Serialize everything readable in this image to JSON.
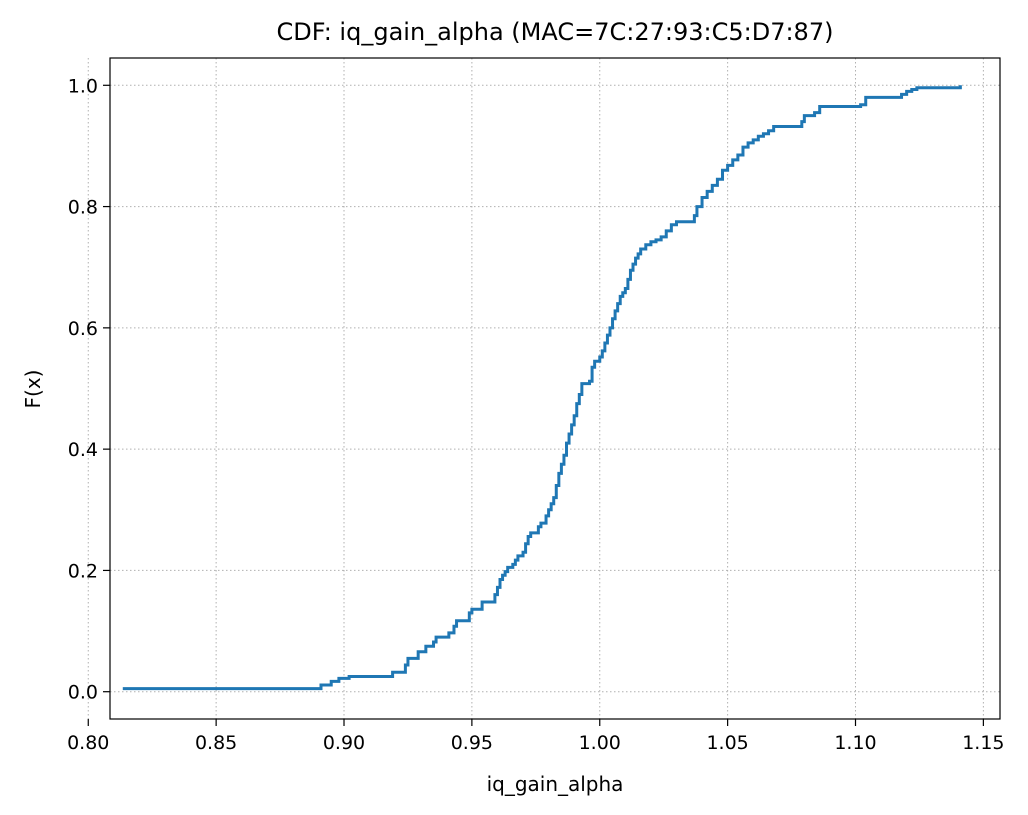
{
  "chart_data": {
    "type": "line",
    "step": true,
    "title": "CDF: iq_gain_alpha (MAC=7C:27:93:C5:D7:87)",
    "xlabel": "iq_gain_alpha",
    "ylabel": "F(x)",
    "xlim": [
      0.8085,
      1.1565
    ],
    "ylim": [
      -0.045,
      1.045
    ],
    "xticks": [
      0.8,
      0.85,
      0.9,
      0.95,
      1.0,
      1.05,
      1.1,
      1.15
    ],
    "xtick_labels": [
      "0.80",
      "0.85",
      "0.90",
      "0.95",
      "1.00",
      "1.05",
      "1.10",
      "1.15"
    ],
    "yticks": [
      0.0,
      0.2,
      0.4,
      0.6,
      0.8,
      1.0
    ],
    "ytick_labels": [
      "0.0",
      "0.2",
      "0.4",
      "0.6",
      "0.8",
      "1.0"
    ],
    "grid": true,
    "series": [
      {
        "color": "#1f77b4",
        "points": [
          [
            0.8135,
            0.005
          ],
          [
            0.89,
            0.005
          ],
          [
            0.891,
            0.011
          ],
          [
            0.894,
            0.011
          ],
          [
            0.895,
            0.017
          ],
          [
            0.897,
            0.017
          ],
          [
            0.898,
            0.022
          ],
          [
            0.901,
            0.022
          ],
          [
            0.902,
            0.025
          ],
          [
            0.918,
            0.025
          ],
          [
            0.919,
            0.032
          ],
          [
            0.923,
            0.032
          ],
          [
            0.924,
            0.044
          ],
          [
            0.925,
            0.055
          ],
          [
            0.928,
            0.055
          ],
          [
            0.929,
            0.066
          ],
          [
            0.931,
            0.066
          ],
          [
            0.932,
            0.075
          ],
          [
            0.934,
            0.075
          ],
          [
            0.935,
            0.082
          ],
          [
            0.936,
            0.09
          ],
          [
            0.94,
            0.09
          ],
          [
            0.941,
            0.097
          ],
          [
            0.942,
            0.097
          ],
          [
            0.943,
            0.108
          ],
          [
            0.944,
            0.117
          ],
          [
            0.948,
            0.117
          ],
          [
            0.949,
            0.13
          ],
          [
            0.95,
            0.136
          ],
          [
            0.953,
            0.136
          ],
          [
            0.954,
            0.148
          ],
          [
            0.958,
            0.148
          ],
          [
            0.959,
            0.16
          ],
          [
            0.96,
            0.172
          ],
          [
            0.961,
            0.185
          ],
          [
            0.962,
            0.192
          ],
          [
            0.963,
            0.198
          ],
          [
            0.964,
            0.205
          ],
          [
            0.966,
            0.21
          ],
          [
            0.967,
            0.217
          ],
          [
            0.968,
            0.224
          ],
          [
            0.97,
            0.23
          ],
          [
            0.971,
            0.244
          ],
          [
            0.972,
            0.256
          ],
          [
            0.973,
            0.262
          ],
          [
            0.975,
            0.262
          ],
          [
            0.976,
            0.272
          ],
          [
            0.977,
            0.278
          ],
          [
            0.979,
            0.29
          ],
          [
            0.98,
            0.3
          ],
          [
            0.981,
            0.31
          ],
          [
            0.982,
            0.32
          ],
          [
            0.983,
            0.34
          ],
          [
            0.984,
            0.36
          ],
          [
            0.985,
            0.375
          ],
          [
            0.986,
            0.39
          ],
          [
            0.987,
            0.41
          ],
          [
            0.988,
            0.425
          ],
          [
            0.989,
            0.44
          ],
          [
            0.99,
            0.455
          ],
          [
            0.991,
            0.475
          ],
          [
            0.992,
            0.49
          ],
          [
            0.993,
            0.508
          ],
          [
            0.996,
            0.512
          ],
          [
            0.997,
            0.535
          ],
          [
            0.998,
            0.545
          ],
          [
            1.0,
            0.552
          ],
          [
            1.001,
            0.562
          ],
          [
            1.002,
            0.575
          ],
          [
            1.003,
            0.588
          ],
          [
            1.004,
            0.6
          ],
          [
            1.005,
            0.615
          ],
          [
            1.006,
            0.628
          ],
          [
            1.007,
            0.64
          ],
          [
            1.008,
            0.652
          ],
          [
            1.009,
            0.658
          ],
          [
            1.01,
            0.665
          ],
          [
            1.011,
            0.68
          ],
          [
            1.012,
            0.695
          ],
          [
            1.013,
            0.705
          ],
          [
            1.014,
            0.715
          ],
          [
            1.015,
            0.722
          ],
          [
            1.016,
            0.73
          ],
          [
            1.018,
            0.737
          ],
          [
            1.02,
            0.742
          ],
          [
            1.022,
            0.745
          ],
          [
            1.024,
            0.75
          ],
          [
            1.026,
            0.76
          ],
          [
            1.028,
            0.77
          ],
          [
            1.03,
            0.775
          ],
          [
            1.036,
            0.775
          ],
          [
            1.037,
            0.785
          ],
          [
            1.038,
            0.8
          ],
          [
            1.04,
            0.815
          ],
          [
            1.042,
            0.825
          ],
          [
            1.044,
            0.835
          ],
          [
            1.046,
            0.845
          ],
          [
            1.048,
            0.86
          ],
          [
            1.05,
            0.868
          ],
          [
            1.052,
            0.877
          ],
          [
            1.054,
            0.885
          ],
          [
            1.056,
            0.898
          ],
          [
            1.058,
            0.905
          ],
          [
            1.06,
            0.91
          ],
          [
            1.062,
            0.916
          ],
          [
            1.064,
            0.92
          ],
          [
            1.066,
            0.925
          ],
          [
            1.068,
            0.932
          ],
          [
            1.078,
            0.932
          ],
          [
            1.079,
            0.94
          ],
          [
            1.08,
            0.95
          ],
          [
            1.084,
            0.955
          ],
          [
            1.086,
            0.965
          ],
          [
            1.102,
            0.968
          ],
          [
            1.104,
            0.98
          ],
          [
            1.118,
            0.985
          ],
          [
            1.12,
            0.99
          ],
          [
            1.122,
            0.993
          ],
          [
            1.124,
            0.996
          ],
          [
            1.14,
            0.996
          ],
          [
            1.141,
            1.0
          ]
        ]
      }
    ]
  }
}
